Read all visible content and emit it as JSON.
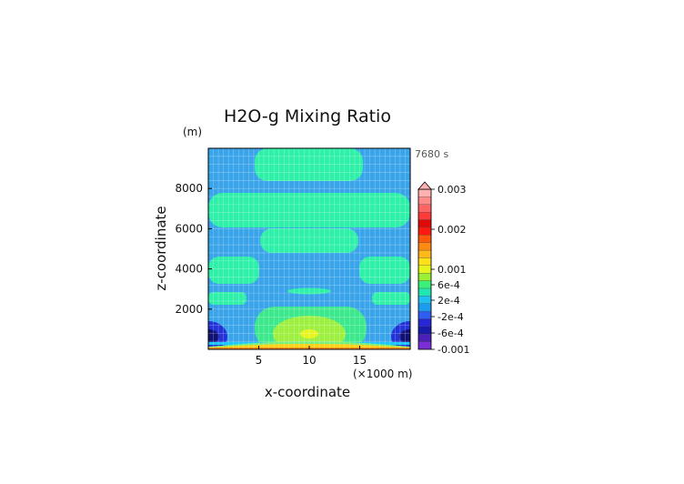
{
  "chart_data": {
    "type": "heatmap",
    "title": "H2O-g Mixing Ratio",
    "time_label": "7680 s",
    "xlabel": "x-coordinate",
    "ylabel": "z-coordinate",
    "x_unit": "(×1000 m)",
    "y_unit": "(m)",
    "xlim": [
      0,
      20
    ],
    "ylim": [
      0,
      10000
    ],
    "x_ticks": [
      5,
      10,
      15
    ],
    "y_ticks": [
      2000,
      4000,
      6000,
      8000
    ],
    "x_tick_labels": [
      "5",
      "10",
      "15"
    ],
    "y_tick_labels": [
      "2000",
      "4000",
      "6000",
      "8000"
    ],
    "grid": true,
    "legend_position": "right",
    "colorbar": {
      "labels": [
        "0.003",
        "0.002",
        "0.001",
        "6e-4",
        "2e-4",
        "-2e-4",
        "-6e-4",
        "-0.001"
      ],
      "label_values": [
        0.003,
        0.002,
        0.001,
        0.0006,
        0.0002,
        -0.0002,
        -0.0006,
        -0.001
      ],
      "colors": [
        "#7a2fd6",
        "#4b1fb8",
        "#1a1aa8",
        "#2626d6",
        "#2f5ef2",
        "#1a9cf0",
        "#1fc0f0",
        "#22e6b0",
        "#3af07a",
        "#9af032",
        "#e6f51e",
        "#ffe11a",
        "#ffb81a",
        "#ff8a12",
        "#ff5a0a",
        "#ff1a10",
        "#e00a0a",
        "#ff3a3a",
        "#ff6464",
        "#ff8a8a",
        "#ffb0b0"
      ]
    },
    "field_colors": {
      "background": "#3aa4ea",
      "moist": "#2ef0a8",
      "low_plume": "#3ce88c",
      "plume_core": "#9ef040",
      "plume_center": "#e6f51e",
      "dry_low": "#2332d8",
      "dry_core": "#121276",
      "surface_orange": "#ff8a12",
      "surface_yellow": "#ffd21a",
      "surface_green": "#7af07a",
      "surface_cyan": "#1ac8ff"
    }
  }
}
